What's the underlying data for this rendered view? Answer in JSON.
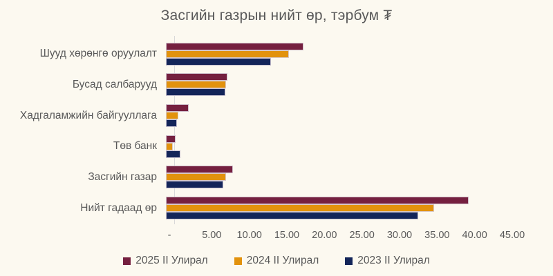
{
  "title": "Засгийн газрын нийт өр, тэрбум ₮",
  "chart_data": {
    "type": "bar",
    "orientation": "horizontal",
    "title": "Засгийн газрын нийт өр, тэрбум ₮",
    "categories": [
      "Шууд хөрөнгө оруулалт",
      "Бусад салбарууд",
      "Хадгаламжийн байгууллага",
      "Төв банк",
      "Засгийн газар",
      "Нийт гадаад өр"
    ],
    "series": [
      {
        "name": "2025 II Улирал",
        "color": "#75203F",
        "values": [
          18.3,
          8.2,
          3.0,
          1.3,
          8.9,
          40.3
        ]
      },
      {
        "name": "2024 II Улирал",
        "color": "#E2920D",
        "values": [
          16.4,
          8.0,
          1.7,
          0.9,
          8.0,
          35.7
        ]
      },
      {
        "name": "2023 II Улирал",
        "color": "#132559",
        "values": [
          14.0,
          7.9,
          1.5,
          1.9,
          7.6,
          33.6
        ]
      }
    ],
    "xlim": [
      0,
      45
    ],
    "x_tick_values": [
      0,
      5,
      10,
      15,
      20,
      25,
      30,
      35,
      40,
      45
    ],
    "x_tick_labels": [
      "-",
      "5.00",
      "10.00",
      "15.00",
      "20.00",
      "25.00",
      "30.00",
      "35.00",
      "40.00",
      "45.00"
    ],
    "grid": false,
    "legend_position": "bottom"
  },
  "colors": {
    "background": "#FCF9F0",
    "text": "#595959",
    "axis_line": "#D9D9D9",
    "bar_border": "#D8CFDA"
  }
}
